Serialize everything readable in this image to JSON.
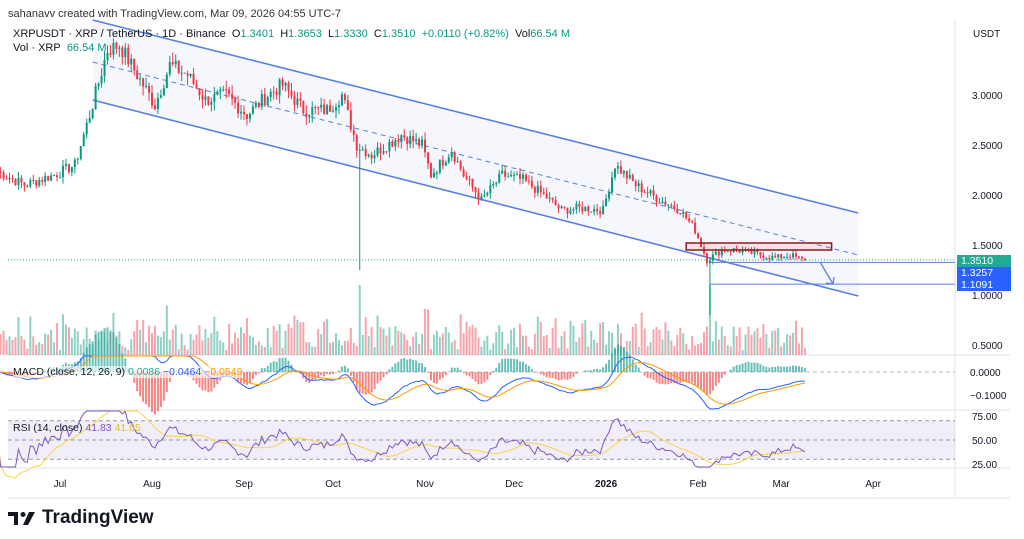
{
  "header": {
    "created": "sahanavv created with TradingView.com, Mar 09, 2026 04:55 UTC-7"
  },
  "legend": {
    "symbol": "XRPUSDT · XRP / TetherUS · 1D · Binance",
    "o_label": "O",
    "o": "1.3401",
    "h_label": "H",
    "h": "1.3653",
    "l_label": "L",
    "l": "1.3330",
    "c_label": "C",
    "c": "1.3510",
    "change": "+0.0110 (+0.82%)",
    "vol_label": "Vol",
    "vol": "66.54 M",
    "vol2_label": "Vol · XRP",
    "vol2": "66.54 M"
  },
  "axis": {
    "currency": "USDT",
    "price_ticks": [
      "3.0000",
      "2.5000",
      "2.0000",
      "1.5000",
      "1.0000",
      "0.5000"
    ],
    "macd_ticks": [
      "0.0000",
      "−0.1000"
    ],
    "rsi_ticks": [
      "75.00",
      "50.00",
      "25.00"
    ],
    "time_ticks": [
      "Jul",
      "Aug",
      "Sep",
      "Oct",
      "Nov",
      "Dec",
      "2026",
      "Feb",
      "Mar",
      "Apr"
    ]
  },
  "price_tags": [
    {
      "value": "1.3510",
      "color": "#22ab94"
    },
    {
      "value": "1.3257",
      "color": "#2962ff"
    },
    {
      "value": "1.1091",
      "color": "#2962ff"
    }
  ],
  "macd": {
    "label": "MACD (close, 12, 26, 9)",
    "hist": "0.0086",
    "macd": "−0.0464",
    "signal": "−0.0549"
  },
  "rsi": {
    "label": "RSI (14, close)",
    "rsi": "41.83",
    "ma": "41.65"
  },
  "logo": "TradingView",
  "colors": {
    "up": "#089981",
    "down": "#f23645",
    "channel": "#5b7fe0",
    "macd": "#2962ff",
    "signal": "#ff9800",
    "rsi": "#7e57c2",
    "rsi_ma": "#f5d547"
  },
  "chart_data": {
    "type": "candlestick",
    "symbol": "XRPUSDT",
    "interval": "1D",
    "closes": [
      [
        "2025-06-10",
        2.25
      ],
      [
        "2025-06-20",
        2.1
      ],
      [
        "2025-06-30",
        2.2
      ],
      [
        "2025-07-07",
        2.3
      ],
      [
        "2025-07-12",
        2.8
      ],
      [
        "2025-07-18",
        3.45
      ],
      [
        "2025-07-22",
        3.5
      ],
      [
        "2025-07-28",
        3.2
      ],
      [
        "2025-08-03",
        2.9
      ],
      [
        "2025-08-08",
        3.3
      ],
      [
        "2025-08-14",
        3.2
      ],
      [
        "2025-08-20",
        2.95
      ],
      [
        "2025-08-27",
        3.0
      ],
      [
        "2025-09-03",
        2.8
      ],
      [
        "2025-09-10",
        3.0
      ],
      [
        "2025-09-15",
        3.1
      ],
      [
        "2025-09-22",
        2.85
      ],
      [
        "2025-09-30",
        2.85
      ],
      [
        "2025-10-05",
        3.0
      ],
      [
        "2025-10-10",
        2.5
      ],
      [
        "2025-10-15",
        2.4
      ],
      [
        "2025-10-25",
        2.6
      ],
      [
        "2025-11-01",
        2.5
      ],
      [
        "2025-11-04",
        2.2
      ],
      [
        "2025-11-11",
        2.45
      ],
      [
        "2025-11-15",
        2.2
      ],
      [
        "2025-11-21",
        1.95
      ],
      [
        "2025-11-28",
        2.2
      ],
      [
        "2025-12-05",
        2.15
      ],
      [
        "2025-12-12",
        2.0
      ],
      [
        "2025-12-18",
        1.85
      ],
      [
        "2025-12-25",
        1.87
      ],
      [
        "2026-01-01",
        1.85
      ],
      [
        "2026-01-05",
        2.3
      ],
      [
        "2026-01-12",
        2.1
      ],
      [
        "2026-01-20",
        1.95
      ],
      [
        "2026-01-27",
        1.85
      ],
      [
        "2026-02-01",
        1.65
      ],
      [
        "2026-02-05",
        1.35
      ],
      [
        "2026-02-10",
        1.45
      ],
      [
        "2026-02-15",
        1.45
      ],
      [
        "2026-02-20",
        1.42
      ],
      [
        "2026-02-28",
        1.37
      ],
      [
        "2026-03-05",
        1.4
      ],
      [
        "2026-03-09",
        1.351
      ]
    ],
    "wicks": [
      [
        "2025-10-10",
        1.25
      ],
      [
        "2026-02-05",
        0.8
      ]
    ],
    "channel": {
      "upper": [
        [
          "2025-07-12",
          3.75
        ],
        [
          "2026-03-27",
          1.82
        ]
      ],
      "middle": [
        [
          "2025-07-12",
          3.33
        ],
        [
          "2026-03-27",
          1.4
        ]
      ],
      "lower": [
        [
          "2025-07-12",
          2.95
        ],
        [
          "2026-03-27",
          0.99
        ]
      ]
    },
    "resistance_box": {
      "from": "2026-01-28",
      "to": "2026-03-18",
      "top": 1.52,
      "bottom": 1.45
    },
    "levels": [
      1.3257,
      1.1091
    ],
    "ylim": [
      0.35,
      3.55
    ]
  }
}
